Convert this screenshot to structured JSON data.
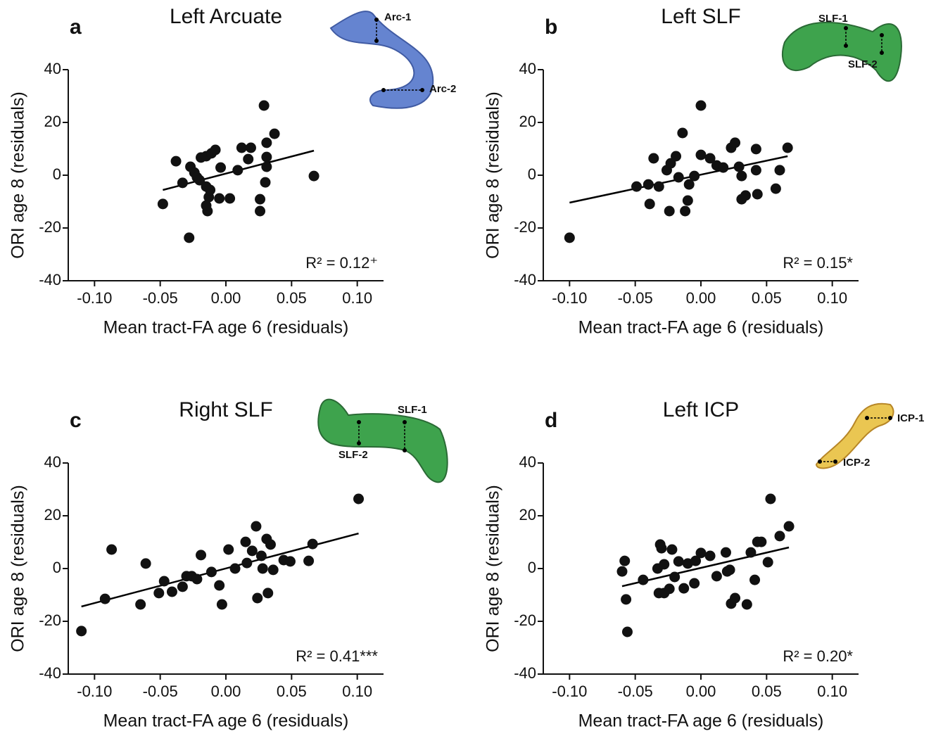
{
  "chart_data": [
    {
      "type": "scatter",
      "panel": "a",
      "title": "Left Arcuate",
      "x_label": "Mean tract-FA age 6 (residuals)",
      "y_label": "ORI age 8 (residuals)",
      "annotation": "R² = 0.12⁺",
      "tract_labels": [
        "Arc-1",
        "Arc-2"
      ],
      "color": "#111111",
      "line_color": "#000000",
      "xlim": [
        -0.12,
        0.12
      ],
      "ylim": [
        -40,
        40
      ],
      "xticks": [
        {
          "value": -0.1,
          "label": "-0.10"
        },
        -0.05,
        {
          "value": 0,
          "label": "0.00"
        },
        0.05,
        {
          "value": 0.1,
          "label": "0.10"
        }
      ],
      "yticks": [
        -40,
        -20,
        0,
        20,
        40
      ],
      "x": [
        -0.048,
        -0.038,
        -0.028,
        -0.033,
        -0.027,
        -0.024,
        -0.022,
        -0.02,
        -0.019,
        -0.015,
        -0.015,
        -0.013,
        -0.014,
        -0.015,
        -0.012,
        -0.011,
        -0.008,
        -0.005,
        -0.004,
        0.003,
        0.009,
        0.012,
        0.017,
        0.019,
        0.026,
        0.026,
        0.029,
        0.031,
        0.031,
        0.031,
        0.03,
        0.037,
        0.067
      ],
      "values": [
        -10.9,
        5.3,
        -23.7,
        -2.9,
        3.2,
        1,
        -0.8,
        -1.9,
        6.7,
        7.2,
        -4.3,
        -8.3,
        -13.6,
        -11.5,
        -5.6,
        8.3,
        9.6,
        -8.8,
        2.9,
        -8.8,
        1.9,
        10.4,
        6.1,
        10.4,
        -9.1,
        -13.6,
        26.4,
        12.3,
        6.9,
        3.2,
        -2.7,
        15.7,
        -0.3
      ],
      "fit": {
        "x": [
          -0.048,
          0.067
        ],
        "values": [
          -5.6,
          9.3
        ]
      }
    },
    {
      "type": "scatter",
      "panel": "b",
      "title": "Left SLF",
      "x_label": "Mean tract-FA age 6 (residuals)",
      "y_label": "ORI age 8 (residuals)",
      "annotation": "R² = 0.15*",
      "tract_labels": [
        "SLF-1",
        "SLF-2"
      ],
      "color": "#111111",
      "line_color": "#000000",
      "xlim": [
        -0.12,
        0.12
      ],
      "ylim": [
        -40,
        40
      ],
      "xticks": [
        {
          "value": -0.1,
          "label": "-0.10"
        },
        -0.05,
        {
          "value": 0,
          "label": "0.00"
        },
        0.05,
        {
          "value": 0.1,
          "label": "0.10"
        }
      ],
      "yticks": [
        -40,
        -20,
        0,
        20,
        40
      ],
      "x": [
        -0.1,
        -0.049,
        -0.04,
        -0.039,
        -0.036,
        -0.032,
        -0.026,
        -0.024,
        -0.023,
        -0.019,
        -0.017,
        -0.014,
        -0.012,
        -0.01,
        -0.009,
        -0.005,
        0.0,
        0.0,
        0.007,
        0.012,
        0.017,
        0.023,
        0.026,
        0.029,
        0.031,
        0.031,
        0.034,
        0.042,
        0.042,
        0.043,
        0.057,
        0.06,
        0.066
      ],
      "values": [
        -23.7,
        -4.3,
        -3.5,
        -10.9,
        6.4,
        -4.3,
        1.9,
        -13.6,
        4.5,
        7.2,
        -0.8,
        16,
        -13.6,
        -9.6,
        -3.5,
        -0.3,
        26.4,
        7.7,
        6.4,
        3.7,
        2.9,
        10.4,
        12.3,
        3.2,
        -0.3,
        -9.1,
        -7.7,
        9.9,
        1.9,
        -7.2,
        -5.1,
        1.9,
        10.4
      ],
      "fit": {
        "x": [
          -0.1,
          0.066
        ],
        "values": [
          -10.4,
          7.2
        ]
      }
    },
    {
      "type": "scatter",
      "panel": "c",
      "title": "Right SLF",
      "x_label": "Mean tract-FA age 6 (residuals)",
      "y_label": "ORI age 8 (residuals)",
      "annotation": "R² = 0.41***",
      "tract_labels": [
        "SLF-1",
        "SLF-2"
      ],
      "color": "#111111",
      "line_color": "#000000",
      "xlim": [
        -0.12,
        0.12
      ],
      "ylim": [
        -40,
        40
      ],
      "xticks": [
        {
          "value": -0.1,
          "label": "-0.10"
        },
        -0.05,
        {
          "value": 0,
          "label": "0.00"
        },
        0.05,
        {
          "value": 0.1,
          "label": "0.10"
        }
      ],
      "yticks": [
        -40,
        -20,
        0,
        20,
        40
      ],
      "x": [
        -0.11,
        -0.092,
        -0.087,
        -0.065,
        -0.061,
        -0.051,
        -0.047,
        -0.041,
        -0.033,
        -0.03,
        -0.026,
        -0.022,
        -0.019,
        -0.011,
        -0.005,
        -0.003,
        0.002,
        0.007,
        0.015,
        0.016,
        0.02,
        0.023,
        0.024,
        0.027,
        0.028,
        0.031,
        0.032,
        0.034,
        0.036,
        0.044,
        0.049,
        0.063,
        0.066,
        0.101
      ],
      "values": [
        -23.7,
        -11.5,
        7.2,
        -13.6,
        1.9,
        -9.3,
        -4.8,
        -8.8,
        -6.9,
        -2.9,
        -2.9,
        -4,
        5.1,
        -1.3,
        -6.4,
        -13.6,
        7.2,
        0,
        10.1,
        2.1,
        6.7,
        16,
        -11.2,
        4.8,
        0,
        11.2,
        -9.3,
        9.1,
        -0.5,
        3.2,
        2.7,
        2.9,
        9.3,
        26.4
      ],
      "fit": {
        "x": [
          -0.11,
          0.101
        ],
        "values": [
          -14.4,
          13.3
        ]
      }
    },
    {
      "type": "scatter",
      "panel": "d",
      "title": "Left ICP",
      "x_label": "Mean tract-FA age 6 (residuals)",
      "y_label": "ORI age 8 (residuals)",
      "annotation": "R² = 0.20*",
      "tract_labels": [
        "ICP-1",
        "ICP-2"
      ],
      "color": "#111111",
      "line_color": "#000000",
      "xlim": [
        -0.12,
        0.12
      ],
      "ylim": [
        -40,
        40
      ],
      "xticks": [
        {
          "value": -0.1,
          "label": "-0.10"
        },
        -0.05,
        {
          "value": 0,
          "label": "0.00"
        },
        0.05,
        {
          "value": 0.1,
          "label": "0.10"
        }
      ],
      "yticks": [
        -40,
        -20,
        0,
        20,
        40
      ],
      "x": [
        -0.06,
        -0.058,
        -0.057,
        -0.056,
        -0.044,
        -0.033,
        -0.031,
        -0.03,
        -0.028,
        -0.032,
        -0.028,
        -0.024,
        -0.022,
        -0.02,
        -0.017,
        -0.013,
        -0.01,
        -0.005,
        -0.004,
        0.0,
        0.007,
        0.012,
        0.019,
        0.02,
        0.022,
        0.023,
        0.026,
        0.035,
        0.038,
        0.041,
        0.043,
        0.046,
        0.051,
        0.053,
        0.06,
        0.067
      ],
      "values": [
        -1.1,
        2.9,
        -11.7,
        -24,
        -4.3,
        0,
        9.1,
        7.7,
        1.6,
        -9.3,
        -9.3,
        -7.7,
        7.2,
        -3.2,
        2.7,
        -7.5,
        1.9,
        -5.6,
        2.9,
        5.9,
        4.8,
        -2.9,
        6.1,
        -1.1,
        -0.5,
        -13.3,
        -11.2,
        -13.6,
        6.1,
        -4.3,
        10.1,
        10.1,
        2.4,
        26.4,
        12.3,
        16
      ],
      "fit": {
        "x": [
          -0.06,
          0.067
        ],
        "values": [
          -6.7,
          8
        ]
      }
    }
  ]
}
